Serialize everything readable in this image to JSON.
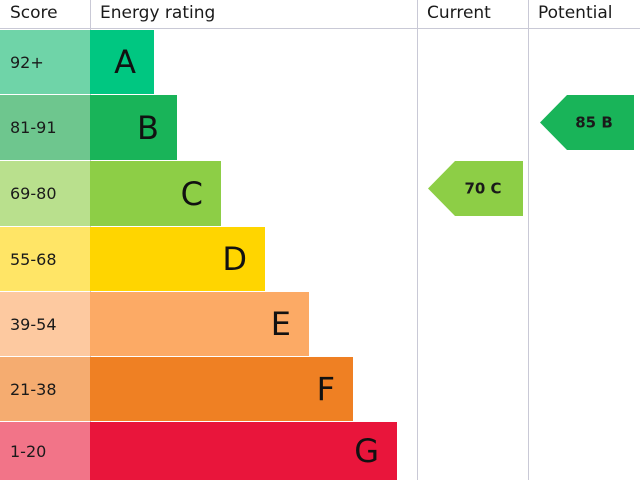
{
  "headers": [
    "Score",
    "Energy rating",
    "Current",
    "Potential"
  ],
  "bands": [
    {
      "score": "92+",
      "letter": "A",
      "color": "#00c781",
      "score_color": "#6fd4a8"
    },
    {
      "score": "81-91",
      "letter": "B",
      "color": "#19b459",
      "score_color": "#6ec68e"
    },
    {
      "score": "69-80",
      "letter": "C",
      "color": "#8dce46",
      "score_color": "#b9e08d"
    },
    {
      "score": "55-68",
      "letter": "D",
      "color": "#ffd500",
      "score_color": "#ffe566"
    },
    {
      "score": "39-54",
      "letter": "E",
      "color": "#fcaa65",
      "score_color": "#fdc9a0"
    },
    {
      "score": "21-38",
      "letter": "F",
      "color": "#ef8023",
      "score_color": "#f5ac70"
    },
    {
      "score": "1-20",
      "letter": "G",
      "color": "#e9153b",
      "score_color": "#f27488"
    }
  ],
  "current": {
    "label": "70 C",
    "color": "#8dce46"
  },
  "potential": {
    "label": "85 B",
    "color": "#19b459"
  }
}
